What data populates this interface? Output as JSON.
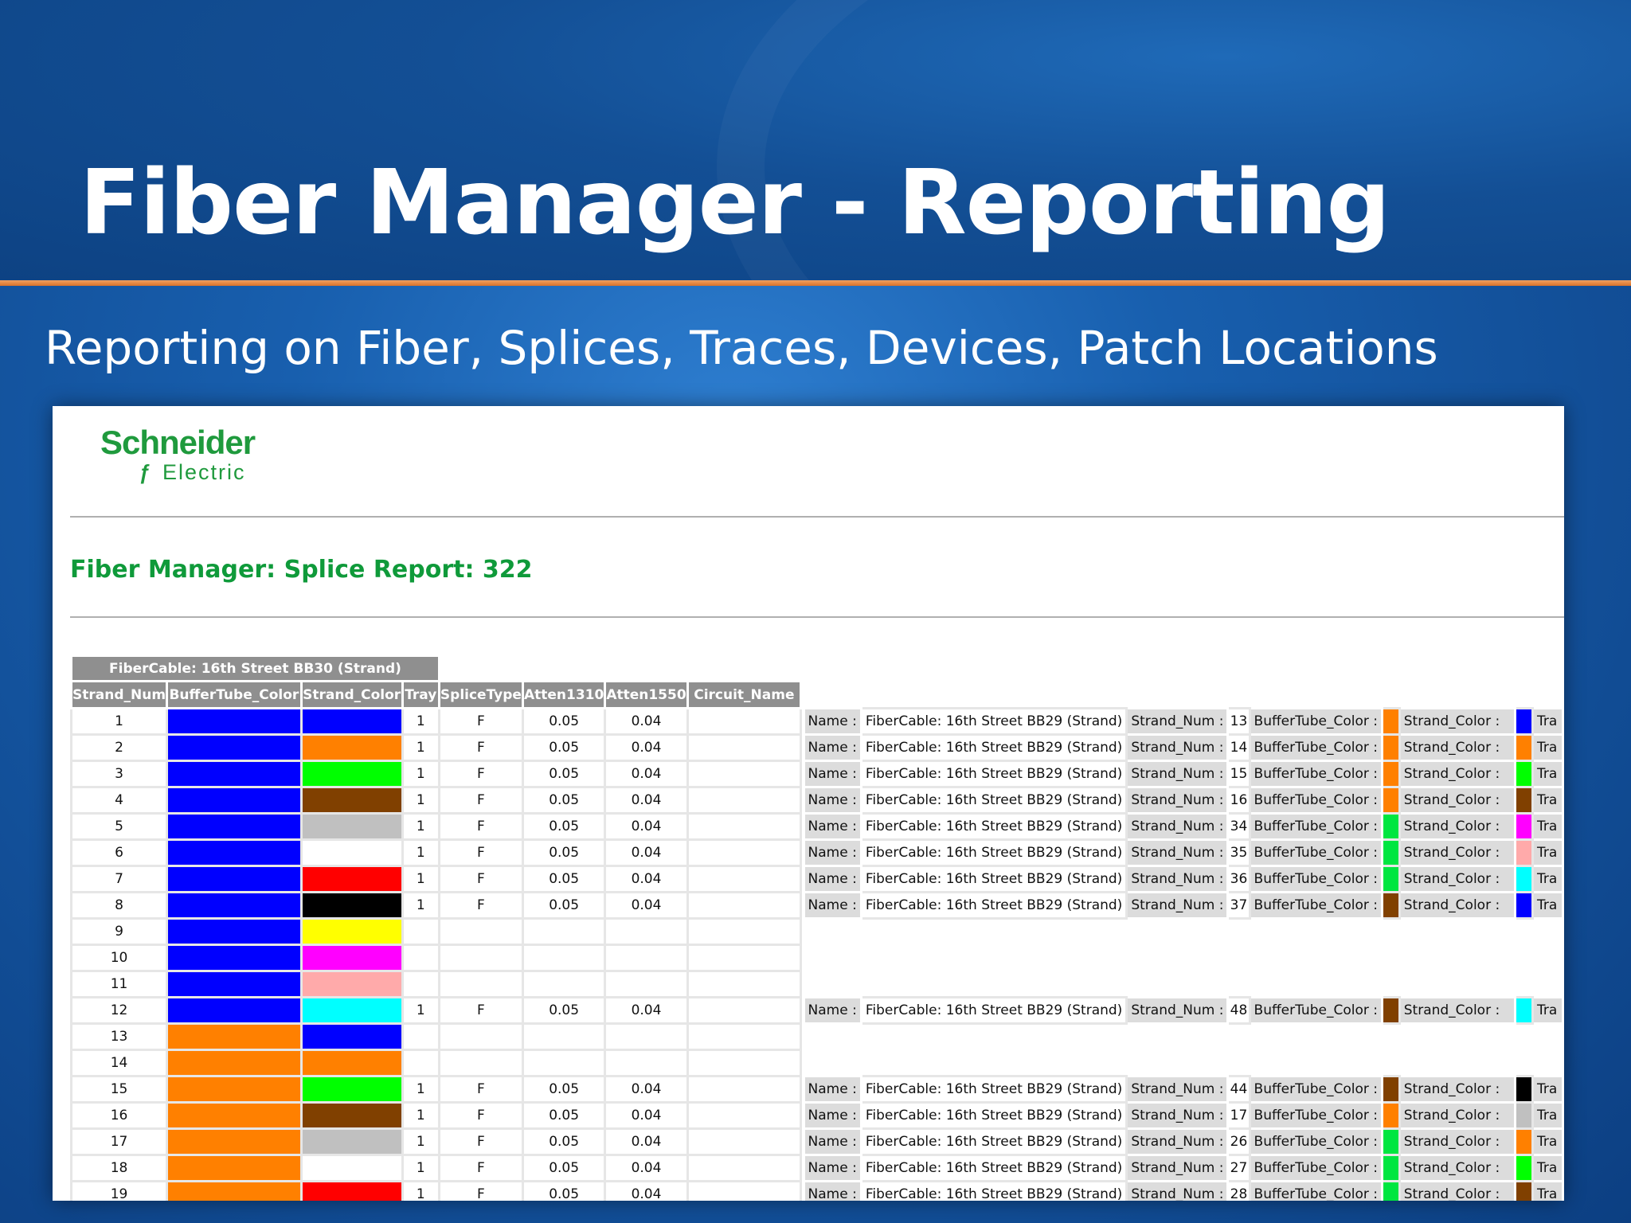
{
  "slide": {
    "title": "Fiber Manager - Reporting",
    "subtitle": "Reporting on Fiber, Splices, Traces, Devices, Patch Locations"
  },
  "report": {
    "logo_top": "Schneider",
    "logo_bottom": "Electric",
    "title": "Fiber Manager: Splice Report: 322",
    "group_header": "FiberCable: 16th Street BB30 (Strand)",
    "columns": [
      "Strand_Num",
      "BufferTube_Color",
      "Strand_Color",
      "Tray",
      "SpliceType",
      "Atten1310",
      "Atten1550",
      "Circuit_Name"
    ],
    "detail_labels": {
      "name": "Name :",
      "strand_num": "Strand_Num :",
      "buffer_color": "BufferTube_Color :",
      "strand_color": "Strand_Color :",
      "tray": "Tra"
    },
    "rows": [
      {
        "num": "1",
        "buffer": "#0000ff",
        "strand": "#0000ff",
        "tray": "1",
        "type": "F",
        "a1310": "0.05",
        "a1550": "0.04",
        "circuit": "",
        "splice": {
          "name": "FiberCable: 16th Street BB29 (Strand)",
          "num": "13",
          "buffer": "#ff8000",
          "strand": "#0000ff"
        }
      },
      {
        "num": "2",
        "buffer": "#0000ff",
        "strand": "#ff8000",
        "tray": "1",
        "type": "F",
        "a1310": "0.05",
        "a1550": "0.04",
        "circuit": "",
        "splice": {
          "name": "FiberCable: 16th Street BB29 (Strand)",
          "num": "14",
          "buffer": "#ff8000",
          "strand": "#ff8000"
        }
      },
      {
        "num": "3",
        "buffer": "#0000ff",
        "strand": "#00ff00",
        "tray": "1",
        "type": "F",
        "a1310": "0.05",
        "a1550": "0.04",
        "circuit": "",
        "splice": {
          "name": "FiberCable: 16th Street BB29 (Strand)",
          "num": "15",
          "buffer": "#ff8000",
          "strand": "#00ff00"
        }
      },
      {
        "num": "4",
        "buffer": "#0000ff",
        "strand": "#804000",
        "tray": "1",
        "type": "F",
        "a1310": "0.05",
        "a1550": "0.04",
        "circuit": "",
        "splice": {
          "name": "FiberCable: 16th Street BB29 (Strand)",
          "num": "16",
          "buffer": "#ff8000",
          "strand": "#804000"
        }
      },
      {
        "num": "5",
        "buffer": "#0000ff",
        "strand": "#c0c0c0",
        "tray": "1",
        "type": "F",
        "a1310": "0.05",
        "a1550": "0.04",
        "circuit": "",
        "splice": {
          "name": "FiberCable: 16th Street BB29 (Strand)",
          "num": "34",
          "buffer": "#00e640",
          "strand": "#ff00ff"
        }
      },
      {
        "num": "6",
        "buffer": "#0000ff",
        "strand": "#ffffff",
        "tray": "1",
        "type": "F",
        "a1310": "0.05",
        "a1550": "0.04",
        "circuit": "",
        "splice": {
          "name": "FiberCable: 16th Street BB29 (Strand)",
          "num": "35",
          "buffer": "#00e640",
          "strand": "#ffaaaa"
        }
      },
      {
        "num": "7",
        "buffer": "#0000ff",
        "strand": "#ff0000",
        "tray": "1",
        "type": "F",
        "a1310": "0.05",
        "a1550": "0.04",
        "circuit": "",
        "splice": {
          "name": "FiberCable: 16th Street BB29 (Strand)",
          "num": "36",
          "buffer": "#00e640",
          "strand": "#00ffff"
        }
      },
      {
        "num": "8",
        "buffer": "#0000ff",
        "strand": "#000000",
        "tray": "1",
        "type": "F",
        "a1310": "0.05",
        "a1550": "0.04",
        "circuit": "",
        "splice": {
          "name": "FiberCable: 16th Street BB29 (Strand)",
          "num": "37",
          "buffer": "#804000",
          "strand": "#0000ff"
        }
      },
      {
        "num": "9",
        "buffer": "#0000ff",
        "strand": "#ffff00",
        "tray": "",
        "type": "",
        "a1310": "",
        "a1550": "",
        "circuit": "",
        "splice": null
      },
      {
        "num": "10",
        "buffer": "#0000ff",
        "strand": "#ff00ff",
        "tray": "",
        "type": "",
        "a1310": "",
        "a1550": "",
        "circuit": "",
        "splice": null
      },
      {
        "num": "11",
        "buffer": "#0000ff",
        "strand": "#ffaaaa",
        "tray": "",
        "type": "",
        "a1310": "",
        "a1550": "",
        "circuit": "",
        "splice": null
      },
      {
        "num": "12",
        "buffer": "#0000ff",
        "strand": "#00ffff",
        "tray": "1",
        "type": "F",
        "a1310": "0.05",
        "a1550": "0.04",
        "circuit": "",
        "splice": {
          "name": "FiberCable: 16th Street BB29 (Strand)",
          "num": "48",
          "buffer": "#804000",
          "strand": "#00ffff"
        }
      },
      {
        "num": "13",
        "buffer": "#ff8000",
        "strand": "#0000ff",
        "tray": "",
        "type": "",
        "a1310": "",
        "a1550": "",
        "circuit": "",
        "splice": null
      },
      {
        "num": "14",
        "buffer": "#ff8000",
        "strand": "#ff8000",
        "tray": "",
        "type": "",
        "a1310": "",
        "a1550": "",
        "circuit": "",
        "splice": null
      },
      {
        "num": "15",
        "buffer": "#ff8000",
        "strand": "#00ff00",
        "tray": "1",
        "type": "F",
        "a1310": "0.05",
        "a1550": "0.04",
        "circuit": "",
        "splice": {
          "name": "FiberCable: 16th Street BB29 (Strand)",
          "num": "44",
          "buffer": "#804000",
          "strand": "#000000"
        }
      },
      {
        "num": "16",
        "buffer": "#ff8000",
        "strand": "#804000",
        "tray": "1",
        "type": "F",
        "a1310": "0.05",
        "a1550": "0.04",
        "circuit": "",
        "splice": {
          "name": "FiberCable: 16th Street BB29 (Strand)",
          "num": "17",
          "buffer": "#ff8000",
          "strand": "#c0c0c0"
        }
      },
      {
        "num": "17",
        "buffer": "#ff8000",
        "strand": "#c0c0c0",
        "tray": "1",
        "type": "F",
        "a1310": "0.05",
        "a1550": "0.04",
        "circuit": "",
        "splice": {
          "name": "FiberCable: 16th Street BB29 (Strand)",
          "num": "26",
          "buffer": "#00e640",
          "strand": "#ff8000"
        }
      },
      {
        "num": "18",
        "buffer": "#ff8000",
        "strand": "#ffffff",
        "tray": "1",
        "type": "F",
        "a1310": "0.05",
        "a1550": "0.04",
        "circuit": "",
        "splice": {
          "name": "FiberCable: 16th Street BB29 (Strand)",
          "num": "27",
          "buffer": "#00e640",
          "strand": "#00ff00"
        }
      },
      {
        "num": "19",
        "buffer": "#ff8000",
        "strand": "#ff0000",
        "tray": "1",
        "type": "F",
        "a1310": "0.05",
        "a1550": "0.04",
        "circuit": "",
        "splice": {
          "name": "FiberCable: 16th Street BB29 (Strand)",
          "num": "28",
          "buffer": "#00e640",
          "strand": "#804000"
        }
      }
    ]
  }
}
